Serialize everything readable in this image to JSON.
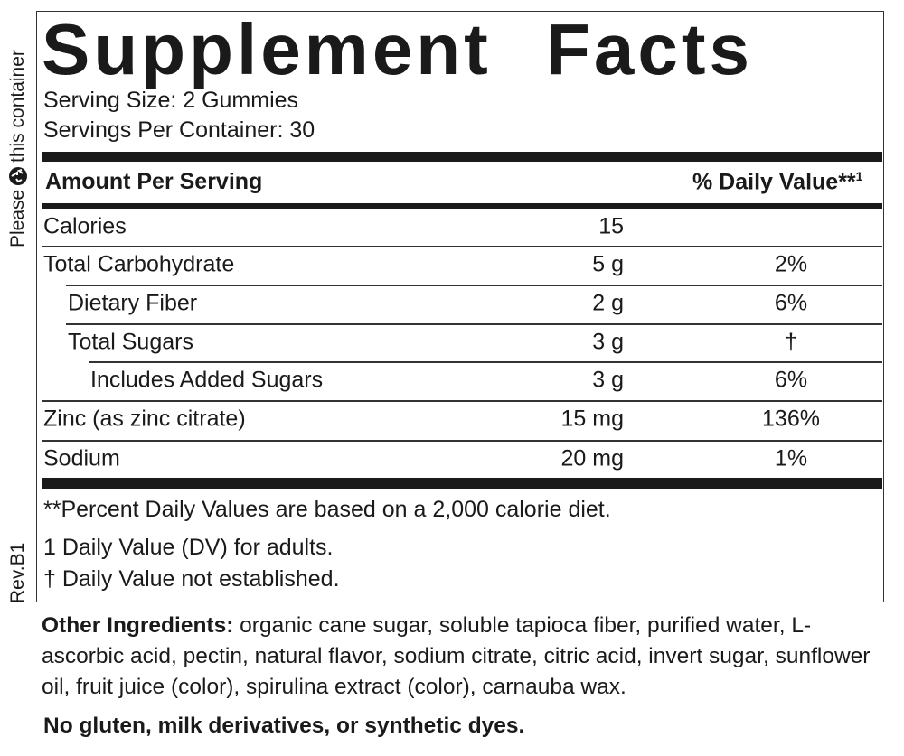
{
  "side_note": {
    "before": "Please",
    "after": "this container"
  },
  "revision": "Rev.B1",
  "title": "Supplement Facts",
  "serving_size": "Serving Size: 2 Gummies",
  "servings_per_container": "Servings Per Container: 30",
  "table": {
    "header": {
      "amount": "Amount Per Serving",
      "daily_value": "% Daily Value**",
      "daily_value_note": "1"
    },
    "rows": [
      [
        "Calories",
        "15"
      ],
      [
        "Total Carbohydrate",
        "5 g",
        "2%"
      ],
      [
        "Dietary Fiber",
        "2 g",
        "6%"
      ],
      [
        "Total Sugars",
        "3 g",
        "†"
      ],
      [
        "Includes Added Sugars",
        "3 g",
        "6%"
      ],
      [
        "Zinc (as zinc citrate)",
        "15 mg",
        "136%"
      ],
      [
        "Sodium",
        "20 mg",
        "1%"
      ]
    ]
  },
  "footnotes": [
    "**Percent Daily Values are based on a 2,000 calorie diet.",
    "1 Daily Value (DV) for adults.",
    "† Daily Value not established."
  ],
  "other_ingredients": {
    "label": "Other Ingredients:",
    "text": "organic cane sugar, soluble tapioca fiber, purified water, L-ascorbic acid, pectin, natural flavor, sodium citrate, citric acid, invert sugar, sunflower oil, fruit juice (color), spirulina extract (color), carnauba wax."
  },
  "allergen_note": "No gluten, milk derivatives, or synthetic dyes."
}
